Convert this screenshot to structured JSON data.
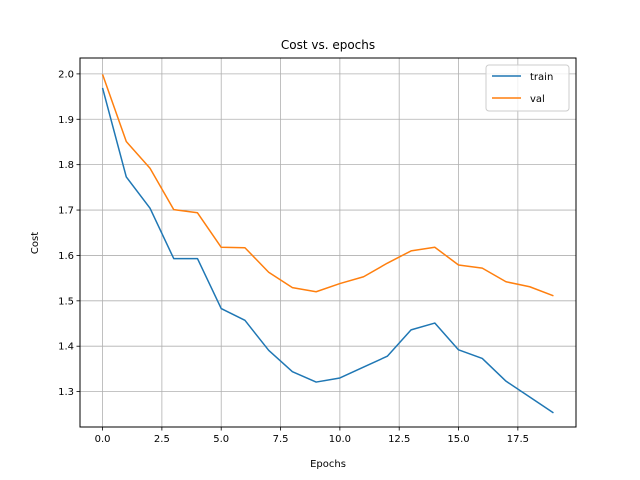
{
  "chart_data": {
    "type": "line",
    "title": "Cost vs. epochs",
    "xlabel": "Epochs",
    "ylabel": "Cost",
    "xlim": [
      -0.95,
      19.95
    ],
    "ylim": [
      1.222,
      2.035
    ],
    "xticks": [
      0.0,
      2.5,
      5.0,
      7.5,
      10.0,
      12.5,
      15.0,
      17.5
    ],
    "xtick_labels": [
      "0.0",
      "2.5",
      "5.0",
      "7.5",
      "10.0",
      "12.5",
      "15.0",
      "17.5"
    ],
    "yticks": [
      1.3,
      1.4,
      1.5,
      1.6,
      1.7,
      1.8,
      1.9,
      2.0
    ],
    "ytick_labels": [
      "1.3",
      "1.4",
      "1.5",
      "1.6",
      "1.7",
      "1.8",
      "1.9",
      "2.0"
    ],
    "grid": true,
    "legend_position": "top-right",
    "x": [
      0,
      1,
      2,
      3,
      4,
      5,
      6,
      7,
      8,
      9,
      10,
      11,
      12,
      13,
      14,
      15,
      16,
      17,
      18,
      19
    ],
    "series": [
      {
        "name": "train",
        "color": "#1f77b4",
        "values": [
          1.969,
          1.773,
          1.704,
          1.593,
          1.593,
          1.483,
          1.457,
          1.391,
          1.344,
          1.321,
          1.33,
          1.354,
          1.378,
          1.436,
          1.451,
          1.392,
          1.373,
          1.323,
          1.288,
          1.253
        ]
      },
      {
        "name": "val",
        "color": "#ff7f0e",
        "values": [
          1.999,
          1.851,
          1.792,
          1.701,
          1.694,
          1.618,
          1.617,
          1.563,
          1.529,
          1.52,
          1.538,
          1.553,
          1.583,
          1.61,
          1.618,
          1.579,
          1.572,
          1.542,
          1.531,
          1.511
        ]
      }
    ]
  }
}
